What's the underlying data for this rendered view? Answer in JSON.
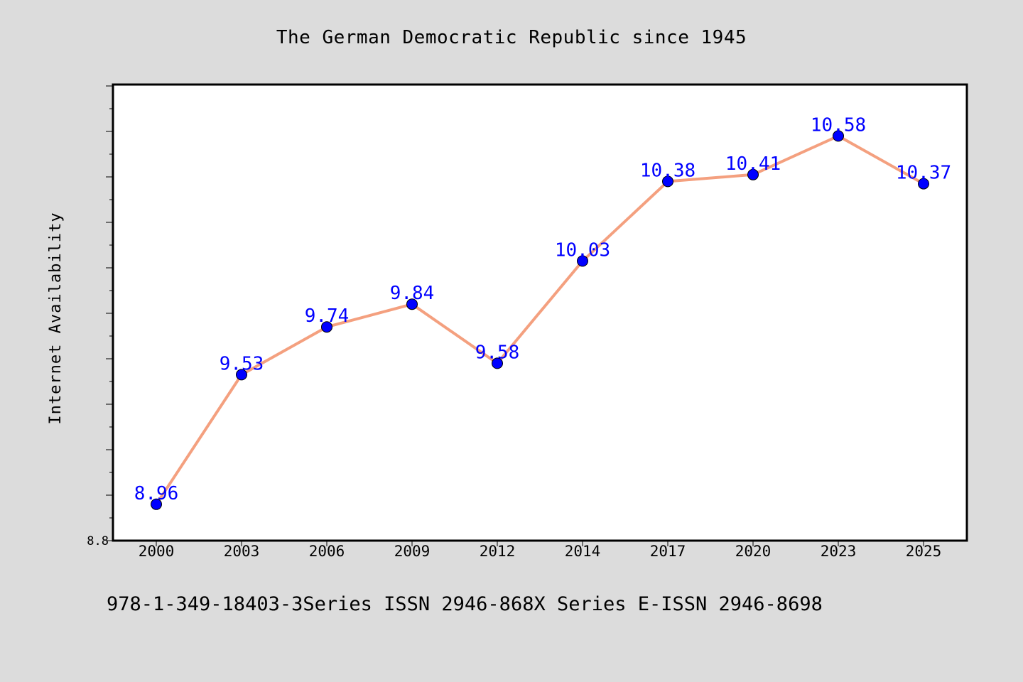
{
  "chart_data": {
    "type": "line",
    "title": "The German Democratic Republic since 1945",
    "xlabel": "",
    "ylabel": "Internet Availability",
    "categories": [
      "2000",
      "2003",
      "2006",
      "2009",
      "2012",
      "2014",
      "2017",
      "2020",
      "2023",
      "2025"
    ],
    "values": [
      8.96,
      9.53,
      9.74,
      9.84,
      9.58,
      10.03,
      10.38,
      10.41,
      10.58,
      10.37
    ],
    "data_labels": [
      "8.96",
      "9.53",
      "9.74",
      "9.84",
      "9.58",
      "10.03",
      "10.38",
      "10.41",
      "10.58",
      "10.37"
    ],
    "ylim": [
      8.8,
      10.8
    ],
    "ytick_labels": [
      "8.8"
    ],
    "grid": false,
    "legend": "none",
    "colors": {
      "line": "#f4a07f",
      "marker": "#0000ff",
      "data_label": "#0000ff",
      "background": "#dcdcdc",
      "plot_background": "#ffffff"
    }
  },
  "footer": {
    "text": "978-1-349-18403-3Series ISSN 2946-868X Series E-ISSN 2946-8698"
  }
}
